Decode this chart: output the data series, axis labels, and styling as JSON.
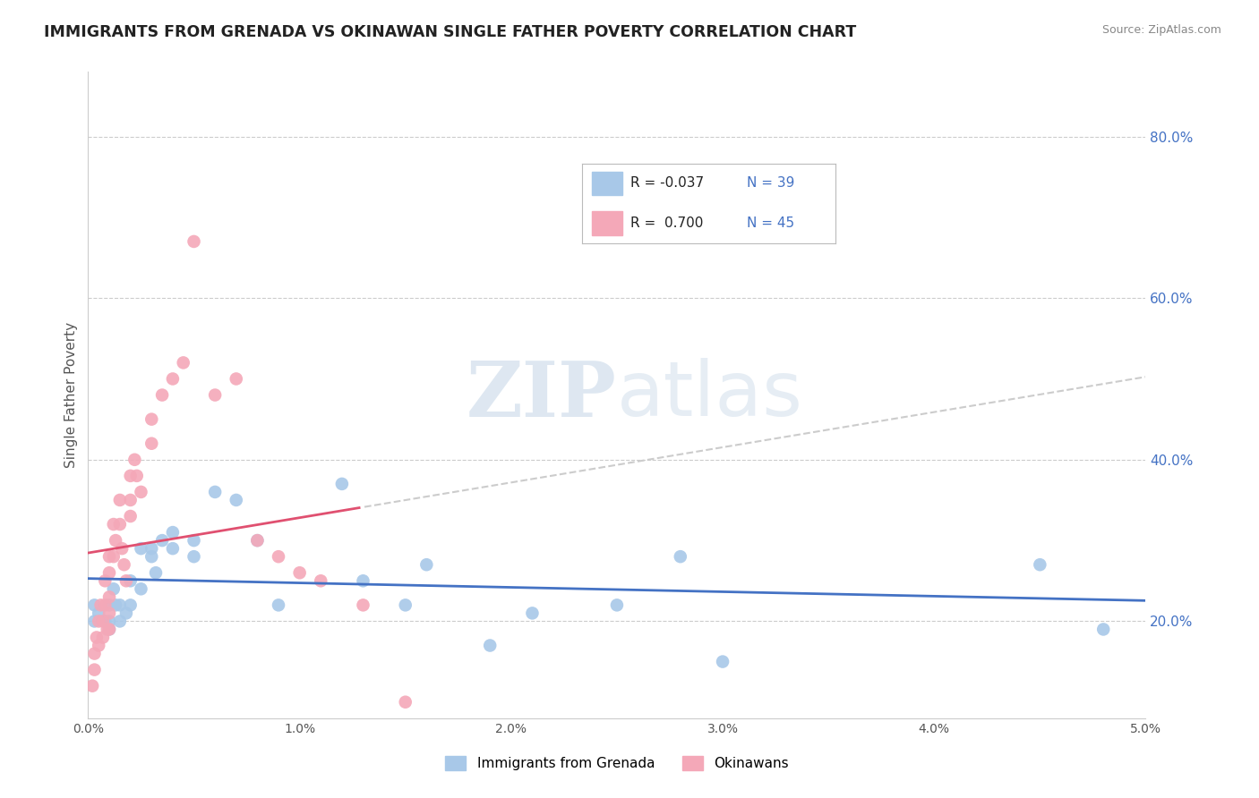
{
  "title": "IMMIGRANTS FROM GRENADA VS OKINAWAN SINGLE FATHER POVERTY CORRELATION CHART",
  "source": "Source: ZipAtlas.com",
  "ylabel": "Single Father Poverty",
  "xlim": [
    0.0,
    0.05
  ],
  "ylim": [
    0.08,
    0.88
  ],
  "y_ticks": [
    0.2,
    0.4,
    0.6,
    0.8
  ],
  "legend_r1": "-0.037",
  "legend_n1": "39",
  "legend_r2": "0.700",
  "legend_n2": "45",
  "color_blue": "#a8c8e8",
  "color_pink": "#f4a8b8",
  "color_blue_line": "#4472c4",
  "color_pink_line": "#e05070",
  "color_label_blue": "#4472c4",
  "watermark_zip": "ZIP",
  "watermark_atlas": "atlas",
  "blue_points_x": [
    0.0003,
    0.0003,
    0.0005,
    0.0008,
    0.001,
    0.001,
    0.001,
    0.0012,
    0.0013,
    0.0015,
    0.0015,
    0.0018,
    0.002,
    0.002,
    0.0025,
    0.0025,
    0.003,
    0.003,
    0.0032,
    0.0035,
    0.004,
    0.004,
    0.005,
    0.005,
    0.006,
    0.007,
    0.008,
    0.009,
    0.012,
    0.013,
    0.015,
    0.016,
    0.019,
    0.021,
    0.025,
    0.028,
    0.03,
    0.045,
    0.048
  ],
  "blue_points_y": [
    0.22,
    0.2,
    0.21,
    0.2,
    0.22,
    0.2,
    0.19,
    0.24,
    0.22,
    0.22,
    0.2,
    0.21,
    0.25,
    0.22,
    0.29,
    0.24,
    0.29,
    0.28,
    0.26,
    0.3,
    0.31,
    0.29,
    0.3,
    0.28,
    0.36,
    0.35,
    0.3,
    0.22,
    0.37,
    0.25,
    0.22,
    0.27,
    0.17,
    0.21,
    0.22,
    0.28,
    0.15,
    0.27,
    0.19
  ],
  "pink_points_x": [
    0.0002,
    0.0003,
    0.0003,
    0.0004,
    0.0005,
    0.0005,
    0.0006,
    0.0007,
    0.0007,
    0.0008,
    0.0008,
    0.0009,
    0.001,
    0.001,
    0.001,
    0.001,
    0.001,
    0.0012,
    0.0012,
    0.0013,
    0.0015,
    0.0015,
    0.0016,
    0.0017,
    0.0018,
    0.002,
    0.002,
    0.002,
    0.0022,
    0.0023,
    0.0025,
    0.003,
    0.003,
    0.0035,
    0.004,
    0.0045,
    0.005,
    0.006,
    0.007,
    0.008,
    0.009,
    0.01,
    0.011,
    0.013,
    0.015
  ],
  "pink_points_y": [
    0.12,
    0.16,
    0.14,
    0.18,
    0.2,
    0.17,
    0.22,
    0.2,
    0.18,
    0.25,
    0.22,
    0.19,
    0.28,
    0.26,
    0.23,
    0.21,
    0.19,
    0.32,
    0.28,
    0.3,
    0.35,
    0.32,
    0.29,
    0.27,
    0.25,
    0.38,
    0.35,
    0.33,
    0.4,
    0.38,
    0.36,
    0.45,
    0.42,
    0.48,
    0.5,
    0.52,
    0.67,
    0.48,
    0.5,
    0.3,
    0.28,
    0.26,
    0.25,
    0.22,
    0.1
  ],
  "background_color": "#ffffff",
  "grid_color": "#cccccc",
  "right_axis_color": "#4472c4"
}
